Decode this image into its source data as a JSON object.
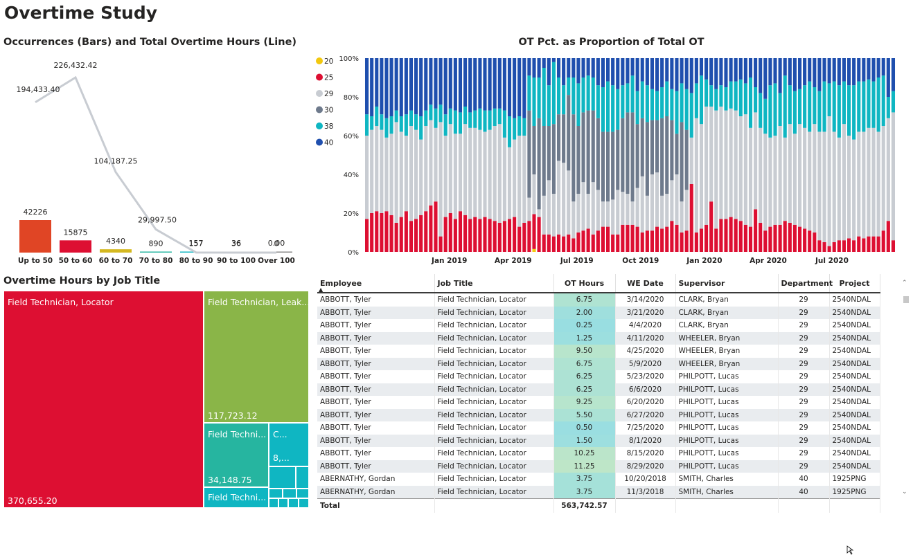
{
  "page": {
    "title": "Overtime Study"
  },
  "combo": {
    "title": "Occurrences (Bars) and Total Overtime Hours (Line)"
  },
  "stack": {
    "title": "OT Pct. as Proportion of Total OT",
    "legend": [
      {
        "label": "20",
        "color": "#F2C80F"
      },
      {
        "label": "25",
        "color": "#DD0F32"
      },
      {
        "label": "29",
        "color": "#C8CCD2"
      },
      {
        "label": "30",
        "color": "#6E7A8C"
      },
      {
        "label": "38",
        "color": "#0FB6C2"
      },
      {
        "label": "40",
        "color": "#1F4FAE"
      }
    ],
    "y_ticks": [
      "100%",
      "80%",
      "60%",
      "40%",
      "20%",
      "0%"
    ],
    "x_ticks": [
      "Jan 2019",
      "Apr 2019",
      "Jul 2019",
      "Oct 2019",
      "Jan 2020",
      "Apr 2020",
      "Jul 2020"
    ]
  },
  "treemap": {
    "title": "Overtime Hours by Job Title",
    "tiles": [
      {
        "label": "Field Technician, Locator",
        "value": "370,655.20",
        "color": "#DD0F32"
      },
      {
        "label": "Field Technician, Leak...",
        "value": "117,723.12",
        "color": "#8AB548"
      },
      {
        "label": "Field Techni...",
        "value": "34,148.75",
        "color": "#26B5A0"
      },
      {
        "label": "C...",
        "value": "8,...",
        "color": "#0FB6C2"
      },
      {
        "label": "Field Techni...",
        "value": "",
        "color": "#0FB6C2"
      }
    ]
  },
  "table": {
    "headers": [
      "Employee",
      "Job Title",
      "OT Hours",
      "WE Date",
      "Supervisor",
      "Department",
      "Project"
    ],
    "rows": [
      [
        "ABBOTT, Tyler",
        "Field Technician, Locator",
        "6.75",
        "3/14/2020",
        "CLARK, Bryan",
        "29",
        "2540NDAL"
      ],
      [
        "ABBOTT, Tyler",
        "Field Technician, Locator",
        "2.00",
        "3/21/2020",
        "CLARK, Bryan",
        "29",
        "2540NDAL"
      ],
      [
        "ABBOTT, Tyler",
        "Field Technician, Locator",
        "0.25",
        "4/4/2020",
        "CLARK, Bryan",
        "29",
        "2540NDAL"
      ],
      [
        "ABBOTT, Tyler",
        "Field Technician, Locator",
        "1.25",
        "4/11/2020",
        "WHEELER, Bryan",
        "29",
        "2540NDAL"
      ],
      [
        "ABBOTT, Tyler",
        "Field Technician, Locator",
        "9.50",
        "4/25/2020",
        "WHEELER, Bryan",
        "29",
        "2540NDAL"
      ],
      [
        "ABBOTT, Tyler",
        "Field Technician, Locator",
        "6.75",
        "5/9/2020",
        "WHEELER, Bryan",
        "29",
        "2540NDAL"
      ],
      [
        "ABBOTT, Tyler",
        "Field Technician, Locator",
        "6.25",
        "5/23/2020",
        "PHILPOTT, Lucas",
        "29",
        "2540NDAL"
      ],
      [
        "ABBOTT, Tyler",
        "Field Technician, Locator",
        "6.25",
        "6/6/2020",
        "PHILPOTT, Lucas",
        "29",
        "2540NDAL"
      ],
      [
        "ABBOTT, Tyler",
        "Field Technician, Locator",
        "9.25",
        "6/20/2020",
        "PHILPOTT, Lucas",
        "29",
        "2540NDAL"
      ],
      [
        "ABBOTT, Tyler",
        "Field Technician, Locator",
        "5.50",
        "6/27/2020",
        "PHILPOTT, Lucas",
        "29",
        "2540NDAL"
      ],
      [
        "ABBOTT, Tyler",
        "Field Technician, Locator",
        "0.50",
        "7/25/2020",
        "PHILPOTT, Lucas",
        "29",
        "2540NDAL"
      ],
      [
        "ABBOTT, Tyler",
        "Field Technician, Locator",
        "1.50",
        "8/1/2020",
        "PHILPOTT, Lucas",
        "29",
        "2540NDAL"
      ],
      [
        "ABBOTT, Tyler",
        "Field Technician, Locator",
        "10.25",
        "8/15/2020",
        "PHILPOTT, Lucas",
        "29",
        "2540NDAL"
      ],
      [
        "ABBOTT, Tyler",
        "Field Technician, Locator",
        "11.25",
        "8/29/2020",
        "PHILPOTT, Lucas",
        "29",
        "2540NDAL"
      ],
      [
        "ABERNATHY, Gordan",
        "Field Technician, Locator",
        "3.75",
        "10/20/2018",
        "SMITH, Charles",
        "40",
        "1925PNG"
      ],
      [
        "ABERNATHY, Gordan",
        "Field Technician, Locator",
        "3.75",
        "11/3/2018",
        "SMITH, Charles",
        "40",
        "1925PNG"
      ]
    ],
    "total_label": "Total",
    "total_ot": "563,742.57"
  },
  "chart_data": [
    {
      "type": "bar",
      "title": "Occurrences (Bars) and Total Overtime Hours (Line)",
      "categories": [
        "Up to 50",
        "50 to 60",
        "60 to 70",
        "70 to 80",
        "80 to 90",
        "90 to 100",
        "Over 100"
      ],
      "series": [
        {
          "values": [
            42226,
            15875,
            4340,
            890,
            157,
            36,
            0
          ],
          "colors": [
            "#E04525",
            "#DD0F32",
            "#D4B820",
            "#26B5A0",
            "#0FB6C2",
            "#1F4FAE",
            "#888888"
          ]
        },
        {
          "type": "line",
          "values": [
            194433.4,
            226432.42,
            104187.25,
            29997.5,
            157,
            36,
            0.0
          ],
          "labels": [
            "194,433.40",
            "226,432.42",
            "104,187.25",
            "29,997.50",
            "157",
            "36",
            "0.00"
          ],
          "color": "#C8CCD2"
        }
      ]
    },
    {
      "type": "bar",
      "stacked": "100%",
      "title": "OT Pct. as Proportion of Total OT",
      "x_range": [
        "2018-09",
        "2020-10"
      ],
      "x_ticks": [
        "Jan 2019",
        "Apr 2019",
        "Jul 2019",
        "Oct 2019",
        "Jan 2020",
        "Apr 2020",
        "Jul 2020"
      ],
      "ylim": [
        0,
        100
      ],
      "series_names": [
        "20",
        "25",
        "29",
        "30",
        "38",
        "40"
      ],
      "weeks": 108,
      "pct_25": [
        17,
        20,
        21,
        20,
        21,
        19,
        15,
        18,
        21,
        16,
        17,
        19,
        21,
        24,
        26,
        8,
        18,
        20,
        17,
        21,
        19,
        17,
        18,
        17,
        18,
        17,
        16,
        15,
        16,
        17,
        18,
        13,
        15,
        16,
        18,
        18,
        9,
        9,
        8,
        9,
        8,
        9,
        7,
        10,
        11,
        12,
        9,
        11,
        13,
        13,
        9,
        9,
        14,
        14,
        14,
        13,
        10,
        11,
        11,
        13,
        12,
        13,
        16,
        14,
        10,
        11,
        35,
        10,
        12,
        14,
        26,
        12,
        17,
        17,
        18,
        17,
        16,
        14,
        13,
        22,
        15,
        11,
        13,
        14,
        14,
        16,
        15,
        14,
        13,
        12,
        11,
        10,
        6,
        5,
        3,
        5,
        6,
        6,
        7,
        6,
        8,
        7,
        8,
        8,
        8,
        11,
        16,
        6
      ],
      "pct_30": [
        0,
        0,
        0,
        0,
        0,
        0,
        0,
        0,
        0,
        0,
        0,
        0,
        0,
        0,
        0,
        0,
        0,
        0,
        0,
        0,
        0,
        0,
        0,
        0,
        0,
        0,
        0,
        0,
        0,
        0,
        0,
        0,
        0,
        45,
        25,
        47,
        36,
        28,
        36,
        24,
        25,
        39,
        45,
        35,
        36,
        43,
        37,
        37,
        36,
        36,
        35,
        31,
        38,
        42,
        46,
        33,
        30,
        38,
        28,
        27,
        40,
        40,
        31,
        21,
        41,
        31,
        0,
        0,
        0,
        0,
        0,
        0,
        0,
        0,
        0,
        0,
        0,
        0,
        0,
        0,
        0,
        0,
        0,
        0,
        0,
        0,
        0,
        0,
        0,
        0,
        0,
        0,
        0,
        0,
        0,
        0,
        0,
        0,
        0,
        0,
        0,
        0,
        0,
        0,
        0,
        0,
        0,
        0
      ],
      "pct_38": [
        11,
        7,
        10,
        8,
        10,
        9,
        6,
        8,
        11,
        8,
        8,
        12,
        8,
        8,
        10,
        9,
        11,
        8,
        12,
        11,
        9,
        8,
        9,
        11,
        11,
        10,
        9,
        8,
        14,
        16,
        11,
        10,
        9,
        18,
        25,
        21,
        30,
        21,
        32,
        19,
        15,
        9,
        19,
        22,
        18,
        18,
        17,
        17,
        23,
        26,
        24,
        21,
        17,
        15,
        19,
        17,
        19,
        19,
        16,
        15,
        16,
        18,
        16,
        22,
        20,
        21,
        23,
        18,
        25,
        14,
        11,
        11,
        11,
        12,
        14,
        15,
        19,
        16,
        26,
        13,
        18,
        18,
        27,
        27,
        17,
        32,
        20,
        22,
        18,
        22,
        26,
        19,
        21,
        26,
        17,
        26,
        27,
        22,
        26,
        28,
        26,
        26,
        25,
        24,
        28,
        26,
        11,
        11
      ],
      "pct_40": [
        29,
        30,
        25,
        29,
        31,
        30,
        27,
        30,
        29,
        27,
        29,
        30,
        27,
        24,
        26,
        24,
        29,
        26,
        27,
        28,
        25,
        28,
        27,
        26,
        27,
        27,
        26,
        26,
        27,
        30,
        31,
        30,
        31,
        9,
        10,
        10,
        5,
        14,
        2,
        10,
        14,
        10,
        10,
        13,
        10,
        9,
        10,
        14,
        15,
        12,
        14,
        16,
        14,
        13,
        9,
        17,
        12,
        14,
        16,
        17,
        15,
        12,
        16,
        17,
        13,
        16,
        18,
        13,
        9,
        11,
        14,
        16,
        14,
        15,
        12,
        12,
        11,
        13,
        10,
        15,
        18,
        21,
        14,
        13,
        18,
        9,
        14,
        17,
        16,
        14,
        12,
        15,
        17,
        12,
        13,
        12,
        14,
        12,
        14,
        14,
        12,
        12,
        11,
        12,
        10,
        9,
        20,
        17
      ]
    }
  ]
}
